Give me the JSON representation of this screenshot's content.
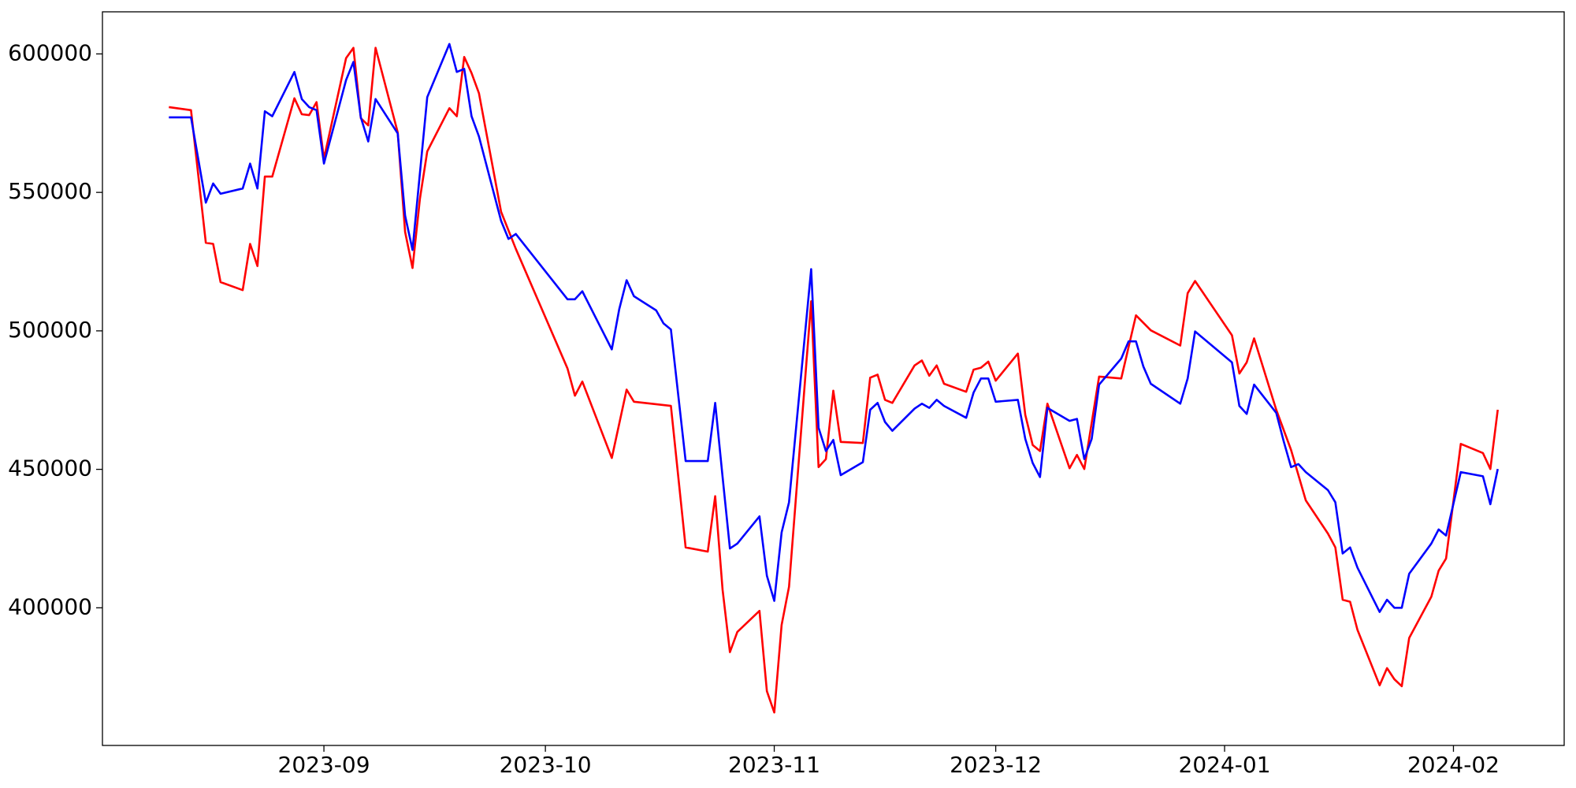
{
  "chart_data": {
    "type": "line",
    "xlim": [
      -30,
      168
    ],
    "xticks": [
      {
        "value": 0,
        "label": "2023-09"
      },
      {
        "value": 30,
        "label": "2023-10"
      },
      {
        "value": 61,
        "label": "2023-11"
      },
      {
        "value": 91,
        "label": "2023-12"
      },
      {
        "value": 122,
        "label": "2024-01"
      },
      {
        "value": 153,
        "label": "2024-02"
      }
    ],
    "ylim": [
      350300,
      615200
    ],
    "yticks": [
      400000,
      450000,
      500000,
      550000,
      600000
    ],
    "grid": false,
    "series": [
      {
        "color": "#ff0000",
        "x": [
          -21,
          -18,
          -16,
          -15,
          -14,
          -11,
          -10,
          -9,
          -8,
          -7,
          -4,
          -3,
          -2,
          -1,
          0,
          3,
          4,
          5,
          6,
          7,
          10,
          11,
          12,
          13,
          14,
          17,
          18,
          19,
          20,
          21,
          24,
          26,
          33,
          34,
          35,
          39,
          41,
          42,
          47,
          49,
          52,
          53,
          54,
          55,
          56,
          59,
          60,
          61,
          62,
          63,
          66,
          67,
          68,
          69,
          70,
          73,
          74,
          75,
          76,
          77,
          80,
          81,
          82,
          83,
          84,
          87,
          88,
          89,
          90,
          91,
          94,
          95,
          96,
          97,
          98,
          101,
          102,
          103,
          105,
          108,
          110,
          112,
          116,
          117,
          118,
          123,
          124,
          125,
          126,
          129,
          131,
          133,
          136,
          137,
          138,
          139,
          140,
          143,
          144,
          145,
          146,
          147,
          150,
          151,
          152,
          154,
          157,
          158,
          159
        ],
        "values": [
          580800,
          579700,
          531800,
          531400,
          517600,
          514700,
          531400,
          523400,
          555700,
          555700,
          584000,
          578200,
          577900,
          582600,
          562200,
          598500,
          602200,
          576800,
          574200,
          602200,
          571700,
          535700,
          522700,
          547700,
          564800,
          580400,
          577500,
          598900,
          593100,
          585800,
          543000,
          529600,
          486400,
          476600,
          481700,
          454100,
          478800,
          474400,
          472900,
          421800,
          420300,
          440300,
          406500,
          384000,
          391300,
          398900,
          369900,
          362200,
          393800,
          407600,
          510700,
          450800,
          453700,
          478400,
          459900,
          459500,
          483100,
          484200,
          475100,
          474000,
          487500,
          489300,
          483800,
          487500,
          480900,
          478000,
          486000,
          486700,
          488900,
          482000,
          491800,
          469700,
          458800,
          456600,
          473700,
          450400,
          455200,
          450100,
          483500,
          482800,
          505600,
          500200,
          494700,
          513600,
          518000,
          498400,
          484600,
          488600,
          497300,
          471500,
          457000,
          438800,
          426800,
          421800,
          402900,
          402200,
          392000,
          372000,
          378200,
          374200,
          371700,
          389100,
          404000,
          413400,
          417800,
          459200,
          455900,
          450100,
          471500
        ]
      },
      {
        "color": "#0000ff",
        "x": [
          -21,
          -18,
          -16,
          -15,
          -14,
          -11,
          -10,
          -9,
          -8,
          -7,
          -4,
          -3,
          -2,
          -1,
          0,
          3,
          4,
          5,
          6,
          7,
          10,
          11,
          12,
          14,
          17,
          18,
          19,
          20,
          21,
          24,
          25,
          26,
          33,
          34,
          35,
          39,
          40,
          41,
          42,
          45,
          46,
          47,
          49,
          52,
          53,
          54,
          55,
          56,
          59,
          60,
          61,
          62,
          63,
          66,
          67,
          68,
          69,
          70,
          73,
          74,
          75,
          76,
          77,
          80,
          81,
          82,
          83,
          84,
          87,
          88,
          89,
          90,
          91,
          94,
          95,
          96,
          97,
          98,
          101,
          102,
          103,
          104,
          105,
          108,
          109,
          110,
          111,
          112,
          116,
          117,
          118,
          123,
          124,
          125,
          126,
          129,
          130,
          131,
          132,
          133,
          136,
          137,
          138,
          139,
          140,
          143,
          144,
          145,
          146,
          147,
          150,
          151,
          152,
          154,
          157,
          158,
          159
        ],
        "values": [
          577100,
          577100,
          546300,
          553200,
          549500,
          551400,
          560400,
          551400,
          579300,
          577500,
          593500,
          583700,
          580800,
          579700,
          560400,
          590600,
          597100,
          577100,
          568400,
          583700,
          571300,
          541600,
          529200,
          584400,
          603600,
          593500,
          594600,
          577500,
          570200,
          539700,
          533200,
          535000,
          511400,
          511400,
          514300,
          493300,
          507800,
          518300,
          512500,
          507400,
          502700,
          500500,
          453000,
          453000,
          474000,
          447200,
          421400,
          423200,
          433000,
          411600,
          402500,
          427200,
          438100,
          522300,
          465000,
          456600,
          460600,
          447900,
          452600,
          471500,
          474000,
          467100,
          463900,
          471900,
          473700,
          472200,
          475100,
          472900,
          468600,
          477700,
          482800,
          482800,
          474400,
          475100,
          461000,
          452300,
          447200,
          472200,
          467500,
          468200,
          453700,
          461000,
          480600,
          490000,
          496200,
          496200,
          487100,
          480900,
          473700,
          482800,
          499800,
          488600,
          472900,
          470000,
          480600,
          470400,
          460200,
          450800,
          451900,
          449000,
          442500,
          438100,
          419600,
          421800,
          414500,
          398500,
          402900,
          400000,
          400000,
          412300,
          423200,
          428300,
          426100,
          449000,
          447500,
          437400,
          450100
        ]
      }
    ]
  }
}
